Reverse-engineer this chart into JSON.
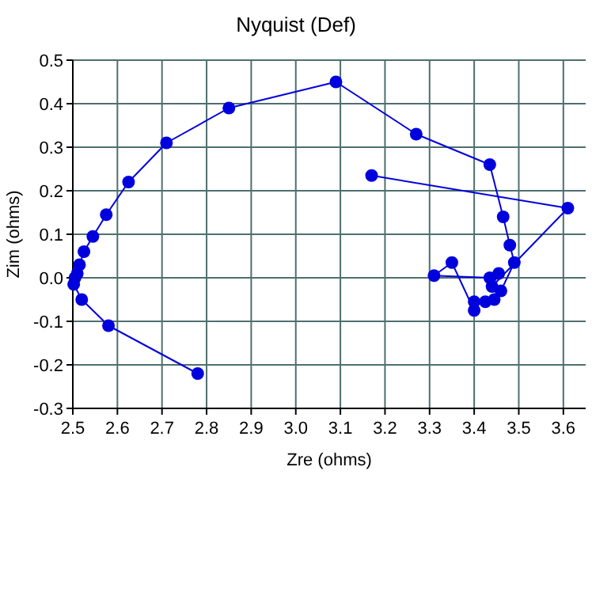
{
  "chart_data": {
    "type": "line",
    "title": "Nyquist (Def)",
    "xlabel": "Zre (ohms)",
    "ylabel": "Zim (ohms)",
    "xlim": [
      2.5,
      3.65
    ],
    "xticks": [
      2.5,
      2.6,
      2.7,
      2.8,
      2.9,
      {
        "value": 3,
        "label": "3.0"
      },
      3.1,
      3.2,
      3.3,
      3.4,
      3.5,
      3.6
    ],
    "ylim": [
      -0.3,
      0.5
    ],
    "yticks": [
      -0.3,
      -0.2,
      -0.1,
      {
        "value": 0,
        "label": "0.0"
      },
      0.1,
      0.2,
      0.3,
      0.4,
      0.5
    ],
    "grid": true,
    "marker": "circle",
    "line_style": "solid",
    "series": [
      {
        "color": "#0000dd",
        "x": [
          2.78,
          2.58,
          2.52,
          2.502,
          2.505,
          2.51,
          2.515,
          2.525,
          2.545,
          2.575,
          2.625,
          2.71,
          2.85,
          3.09,
          3.27,
          3.435,
          3.465,
          3.48,
          3.49,
          3.46,
          3.445,
          3.425,
          3.4,
          3.4,
          3.35,
          3.31,
          3.435,
          3.455,
          3.44,
          3.61,
          3.17
        ],
        "values": [
          -0.22,
          -0.11,
          -0.05,
          -0.015,
          0.0,
          0.01,
          0.03,
          0.06,
          0.095,
          0.145,
          0.22,
          0.31,
          0.39,
          0.45,
          0.33,
          0.26,
          0.14,
          0.075,
          0.035,
          -0.03,
          -0.05,
          -0.055,
          -0.055,
          -0.075,
          0.035,
          0.005,
          0.0,
          0.01,
          -0.02,
          0.16,
          0.235
        ]
      }
    ]
  }
}
